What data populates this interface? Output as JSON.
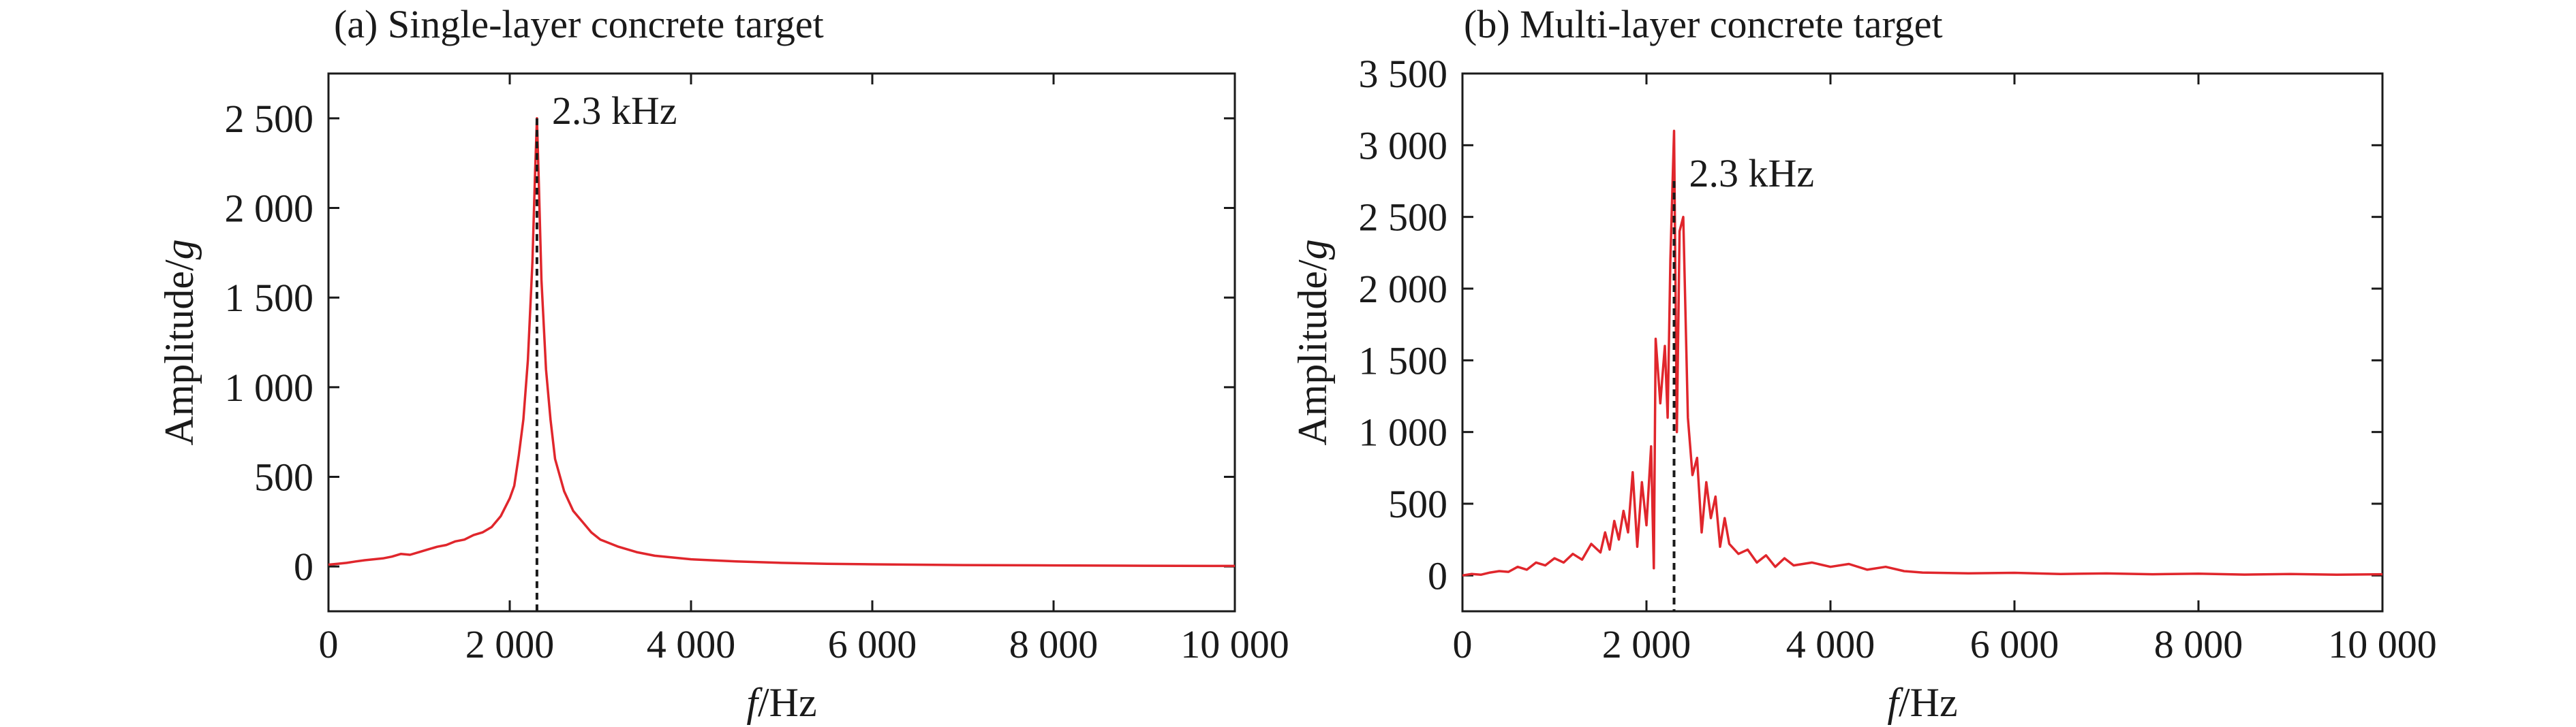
{
  "chart_data": [
    {
      "type": "line",
      "title": "(a) Single-layer concrete target",
      "xlabel_italic": "f",
      "xlabel_unit": "/Hz",
      "ylabel_main": "Amplitude/",
      "ylabel_italic": "g",
      "xlim": [
        0,
        10000
      ],
      "ylim": [
        -250,
        2750
      ],
      "x_ticks": [
        0,
        2000,
        4000,
        6000,
        8000,
        10000
      ],
      "x_tick_labels": [
        "0",
        "2 000",
        "4 000",
        "6 000",
        "8 000",
        "10 000"
      ],
      "y_ticks": [
        0,
        500,
        1000,
        1500,
        2000,
        2500
      ],
      "y_tick_labels": [
        "0",
        "500",
        "1 000",
        "1 500",
        "2 000",
        "2 500"
      ],
      "grid": false,
      "line_color": "#e0262c",
      "annotation": {
        "text": "2.3 kHz",
        "x": 2300,
        "y_top": 2500
      },
      "series": [
        {
          "x": [
            0,
            100,
            200,
            300,
            400,
            500,
            600,
            700,
            800,
            900,
            1000,
            1100,
            1200,
            1300,
            1400,
            1500,
            1600,
            1700,
            1800,
            1900,
            2000,
            2050,
            2100,
            2150,
            2200,
            2250,
            2280,
            2300,
            2320,
            2350,
            2400,
            2450,
            2500,
            2600,
            2700,
            2800,
            2900,
            3000,
            3200,
            3400,
            3600,
            3800,
            4000,
            4500,
            5000,
            5500,
            6000,
            7000,
            8000,
            9000,
            10000
          ],
          "y": [
            10,
            15,
            20,
            28,
            35,
            40,
            45,
            55,
            70,
            65,
            80,
            95,
            110,
            120,
            140,
            150,
            175,
            190,
            220,
            280,
            380,
            450,
            620,
            820,
            1150,
            1700,
            2200,
            2500,
            2150,
            1600,
            1100,
            820,
            600,
            420,
            310,
            250,
            190,
            150,
            110,
            80,
            60,
            50,
            40,
            28,
            20,
            15,
            12,
            8,
            6,
            4,
            3
          ]
        }
      ]
    },
    {
      "type": "line",
      "title": "(b) Multi-layer concrete target",
      "xlabel_italic": "f",
      "xlabel_unit": "/Hz",
      "ylabel_main": "Amplitude/",
      "ylabel_italic": "g",
      "xlim": [
        0,
        10000
      ],
      "ylim": [
        -250,
        3500
      ],
      "x_ticks": [
        0,
        2000,
        4000,
        6000,
        8000,
        10000
      ],
      "x_tick_labels": [
        "0",
        "2 000",
        "4 000",
        "6 000",
        "8 000",
        "10 000"
      ],
      "y_ticks": [
        0,
        500,
        1000,
        1500,
        2000,
        2500,
        3000,
        3500
      ],
      "y_tick_labels": [
        "0",
        "500",
        "1 000",
        "1 500",
        "2 000",
        "2 500",
        "3 000",
        "3 500"
      ],
      "grid": false,
      "line_color": "#e0262c",
      "annotation": {
        "text": "2.3 kHz",
        "x": 2300,
        "y_top": 2750
      },
      "series": [
        {
          "x": [
            0,
            100,
            200,
            300,
            400,
            500,
            600,
            700,
            800,
            900,
            1000,
            1100,
            1200,
            1300,
            1400,
            1500,
            1550,
            1600,
            1650,
            1700,
            1750,
            1800,
            1850,
            1900,
            1950,
            2000,
            2050,
            2080,
            2100,
            2150,
            2200,
            2230,
            2260,
            2300,
            2330,
            2360,
            2400,
            2450,
            2500,
            2550,
            2600,
            2650,
            2700,
            2750,
            2800,
            2850,
            2900,
            3000,
            3100,
            3200,
            3300,
            3400,
            3500,
            3600,
            3800,
            4000,
            4200,
            4400,
            4600,
            4800,
            5000,
            5500,
            6000,
            6500,
            7000,
            7500,
            8000,
            8500,
            9000,
            9500,
            10000
          ],
          "y": [
            0,
            10,
            5,
            20,
            30,
            25,
            60,
            40,
            90,
            70,
            120,
            90,
            150,
            110,
            220,
            160,
            300,
            180,
            380,
            250,
            450,
            300,
            720,
            200,
            650,
            350,
            900,
            50,
            1650,
            1200,
            1600,
            1100,
            2200,
            3100,
            1000,
            2400,
            2500,
            1100,
            700,
            820,
            300,
            650,
            400,
            550,
            200,
            400,
            220,
            150,
            180,
            90,
            140,
            60,
            120,
            70,
            90,
            60,
            80,
            40,
            60,
            30,
            20,
            15,
            18,
            10,
            14,
            8,
            12,
            6,
            10,
            5,
            8
          ]
        }
      ]
    }
  ]
}
